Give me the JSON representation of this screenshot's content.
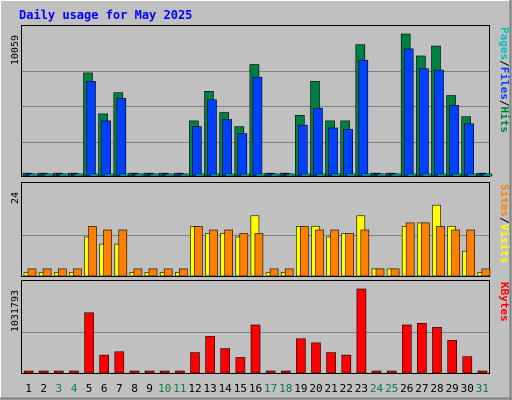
{
  "chart_data": {
    "type": "bar",
    "title": "Daily usage for May 2025",
    "colors": {
      "background": "#c0c0c0",
      "frame_light": "#ffffff",
      "frame_dark": "#808080",
      "panel_border": "#000000",
      "grid": "#808080",
      "title": "#0000ff",
      "weekday_label": "#000000",
      "weekend_label": "#008040",
      "hits": "#008040",
      "files": "#0040ff",
      "pages": "#00c0c0",
      "visits": "#ffff00",
      "sites": "#ff8000",
      "kbytes": "#ff0000",
      "legend_sep": "#000000"
    },
    "days": [
      {
        "label": "1",
        "weekend": false
      },
      {
        "label": "2",
        "weekend": false
      },
      {
        "label": "3",
        "weekend": true
      },
      {
        "label": "4",
        "weekend": true
      },
      {
        "label": "5",
        "weekend": false
      },
      {
        "label": "6",
        "weekend": false
      },
      {
        "label": "7",
        "weekend": false
      },
      {
        "label": "8",
        "weekend": false
      },
      {
        "label": "9",
        "weekend": false
      },
      {
        "label": "10",
        "weekend": true
      },
      {
        "label": "11",
        "weekend": true
      },
      {
        "label": "12",
        "weekend": false
      },
      {
        "label": "13",
        "weekend": false
      },
      {
        "label": "14",
        "weekend": false
      },
      {
        "label": "15",
        "weekend": false
      },
      {
        "label": "16",
        "weekend": false
      },
      {
        "label": "17",
        "weekend": true
      },
      {
        "label": "18",
        "weekend": true
      },
      {
        "label": "19",
        "weekend": false
      },
      {
        "label": "20",
        "weekend": false
      },
      {
        "label": "21",
        "weekend": false
      },
      {
        "label": "22",
        "weekend": false
      },
      {
        "label": "23",
        "weekend": false
      },
      {
        "label": "24",
        "weekend": true
      },
      {
        "label": "25",
        "weekend": true
      },
      {
        "label": "26",
        "weekend": false
      },
      {
        "label": "27",
        "weekend": false
      },
      {
        "label": "28",
        "weekend": false
      },
      {
        "label": "29",
        "weekend": false
      },
      {
        "label": "30",
        "weekend": false
      },
      {
        "label": "31",
        "weekend": true
      }
    ],
    "panels": [
      {
        "name": "hits-files-pages",
        "ymax_label": "10059",
        "ymax": 10059,
        "legend": [
          {
            "text": "Pages",
            "color": "#00c0c0"
          },
          {
            "text": "/",
            "color": "#000000"
          },
          {
            "text": "Files",
            "color": "#0040ff"
          },
          {
            "text": "/",
            "color": "#000000"
          },
          {
            "text": "Hits",
            "color": "#008040"
          }
        ],
        "series": [
          {
            "name": "Hits",
            "color": "#008040",
            "values": [
              200,
              200,
              200,
              200,
              7300,
              4400,
              5900,
              200,
              200,
              200,
              200,
              3900,
              6000,
              4500,
              3500,
              7900,
              200,
              200,
              4300,
              6700,
              3900,
              3900,
              9300,
              200,
              200,
              10059,
              8500,
              9200,
              5700,
              4200,
              200
            ]
          },
          {
            "name": "Files",
            "color": "#0040ff",
            "values": [
              150,
              150,
              150,
              150,
              6700,
              3900,
              5500,
              150,
              150,
              150,
              150,
              3500,
              5400,
              4000,
              3000,
              7000,
              150,
              150,
              3600,
              4800,
              3400,
              3300,
              8200,
              150,
              150,
              9000,
              7600,
              7500,
              5000,
              3700,
              150
            ]
          },
          {
            "name": "Pages",
            "color": "#00c0c0",
            "values": [
              20,
              20,
              20,
              20,
              30,
              20,
              30,
              20,
              20,
              20,
              20,
              20,
              30,
              20,
              20,
              30,
              20,
              20,
              20,
              20,
              20,
              20,
              30,
              20,
              20,
              30,
              30,
              30,
              20,
              20,
              20
            ]
          }
        ]
      },
      {
        "name": "visits-sites",
        "ymax_label": "24",
        "ymax": 24,
        "legend": [
          {
            "text": "Sites",
            "color": "#ff8000"
          },
          {
            "text": "/",
            "color": "#000000"
          },
          {
            "text": "Visits",
            "color": "#ffff00"
          }
        ],
        "series": [
          {
            "name": "Visits",
            "color": "#ffff00",
            "values": [
              1,
              1,
              1,
              1,
              11,
              9,
              9,
              1,
              1,
              1,
              1,
              14,
              12,
              12,
              11,
              17,
              1,
              1,
              14,
              14,
              11,
              12,
              17,
              2,
              2,
              14,
              15,
              20,
              14,
              7,
              1
            ]
          },
          {
            "name": "Sites",
            "color": "#ff8000",
            "values": [
              2,
              2,
              2,
              2,
              14,
              13,
              13,
              2,
              2,
              2,
              2,
              14,
              13,
              13,
              12,
              12,
              2,
              2,
              14,
              13,
              13,
              12,
              13,
              2,
              2,
              15,
              15,
              14,
              13,
              13,
              2
            ]
          }
        ]
      },
      {
        "name": "kbytes",
        "ymax_label": "1031793",
        "ymax": 1031793,
        "legend": [
          {
            "text": "KBytes",
            "color": "#ff0000"
          }
        ],
        "series": [
          {
            "name": "KBytes",
            "color": "#ff0000",
            "values": [
              0,
              0,
              0,
              0,
              740000,
              220000,
              260000,
              0,
              0,
              0,
              0,
              250000,
              450000,
              300000,
              190000,
              590000,
              0,
              0,
              420000,
              370000,
              250000,
              220000,
              1031793,
              0,
              0,
              590000,
              610000,
              560000,
              400000,
              200000,
              0
            ]
          }
        ]
      }
    ]
  }
}
